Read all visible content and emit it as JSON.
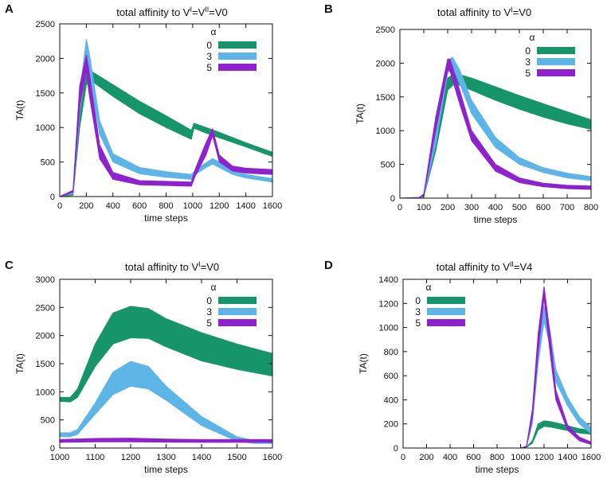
{
  "colors": {
    "alpha0": "#16956b",
    "alpha3": "#5cb5e6",
    "alpha5": "#8e22cf",
    "frame": "#111111"
  },
  "chart_data": [
    {
      "id": "A",
      "type": "area",
      "letter": "A",
      "title": "total affinity to V I=V II=V0",
      "title_parts": [
        "total affinity to V",
        "I",
        "=V",
        "II",
        "=V0"
      ],
      "xlabel": "time steps",
      "ylabel": "TA(t)",
      "xlim": [
        0,
        1600
      ],
      "ylim": [
        0,
        2500
      ],
      "xticks": [
        0,
        200,
        400,
        600,
        800,
        1000,
        1200,
        1400,
        1600
      ],
      "yticks": [
        0,
        500,
        1000,
        1500,
        2000,
        2500
      ],
      "legend": {
        "title": "α",
        "position": "top-right",
        "entries": [
          "0",
          "3",
          "5"
        ]
      },
      "series": [
        {
          "name": "0",
          "color_key": "alpha0",
          "x": [
            0,
            100,
            150,
            200,
            250,
            400,
            600,
            800,
            990,
            1010,
            1100,
            1200,
            1400,
            1600
          ],
          "lower": [
            0,
            20,
            1000,
            1620,
            1660,
            1450,
            1200,
            1000,
            830,
            990,
            920,
            850,
            720,
            580
          ],
          "upper": [
            0,
            30,
            1150,
            1830,
            1800,
            1620,
            1380,
            1170,
            960,
            1060,
            1000,
            930,
            780,
            640
          ]
        },
        {
          "name": "3",
          "color_key": "alpha3",
          "x": [
            0,
            100,
            150,
            200,
            220,
            300,
            400,
            600,
            800,
            990,
            1020,
            1100,
            1150,
            1200,
            1300,
            1400,
            1600
          ],
          "lower": [
            0,
            50,
            1200,
            2060,
            1800,
            900,
            500,
            330,
            280,
            250,
            320,
            420,
            470,
            420,
            320,
            270,
            210
          ],
          "upper": [
            0,
            80,
            1500,
            2280,
            2100,
            1100,
            620,
            420,
            360,
            320,
            380,
            490,
            550,
            500,
            380,
            320,
            260
          ]
        },
        {
          "name": "5",
          "color_key": "alpha5",
          "x": [
            0,
            100,
            150,
            200,
            220,
            300,
            400,
            600,
            800,
            990,
            1020,
            1100,
            1150,
            1200,
            1300,
            1400,
            1600
          ],
          "lower": [
            0,
            60,
            1300,
            1830,
            1500,
            550,
            250,
            170,
            160,
            150,
            300,
            600,
            880,
            500,
            370,
            340,
            320
          ],
          "upper": [
            0,
            90,
            1600,
            2050,
            1820,
            750,
            350,
            230,
            220,
            210,
            400,
            780,
            980,
            600,
            440,
            410,
            390
          ]
        }
      ]
    },
    {
      "id": "B",
      "type": "area",
      "letter": "B",
      "title_parts": [
        "total affinity to V",
        "I",
        "=V0"
      ],
      "xlabel": "time steps",
      "ylabel": "TA(t)",
      "xlim": [
        0,
        800
      ],
      "ylim": [
        0,
        2500
      ],
      "xticks": [
        0,
        100,
        200,
        300,
        400,
        500,
        600,
        700,
        800
      ],
      "yticks": [
        0,
        500,
        1000,
        1500,
        2000,
        2500
      ],
      "legend": {
        "title": "α",
        "position": "top-right",
        "entries": [
          "0",
          "3",
          "5"
        ]
      },
      "series": [
        {
          "name": "0",
          "color_key": "alpha0",
          "x": [
            0,
            80,
            100,
            150,
            200,
            230,
            300,
            400,
            500,
            600,
            700,
            800
          ],
          "lower": [
            0,
            5,
            20,
            700,
            1600,
            1700,
            1600,
            1450,
            1320,
            1200,
            1100,
            1020
          ],
          "upper": [
            0,
            10,
            40,
            950,
            1780,
            1850,
            1780,
            1650,
            1520,
            1400,
            1280,
            1160
          ]
        },
        {
          "name": "3",
          "color_key": "alpha3",
          "x": [
            0,
            80,
            100,
            150,
            200,
            220,
            250,
            300,
            400,
            500,
            600,
            700,
            800
          ],
          "lower": [
            0,
            5,
            30,
            800,
            1850,
            1960,
            1700,
            1250,
            750,
            500,
            380,
            300,
            260
          ],
          "upper": [
            0,
            10,
            50,
            1000,
            2030,
            2090,
            1900,
            1450,
            900,
            600,
            450,
            370,
            320
          ]
        },
        {
          "name": "5",
          "color_key": "alpha5",
          "x": [
            0,
            80,
            100,
            150,
            200,
            210,
            250,
            300,
            400,
            500,
            600,
            700,
            800
          ],
          "lower": [
            0,
            5,
            40,
            1000,
            1900,
            1880,
            1400,
            850,
            400,
            230,
            170,
            140,
            130
          ],
          "upper": [
            0,
            10,
            60,
            1200,
            2060,
            2060,
            1600,
            1000,
            500,
            300,
            220,
            190,
            180
          ]
        }
      ]
    },
    {
      "id": "C",
      "type": "area",
      "letter": "C",
      "title_parts": [
        "total affinity to V",
        "I",
        "=V0"
      ],
      "xlabel": "time steps",
      "ylabel": "TA(t)",
      "xlim": [
        1000,
        1600
      ],
      "ylim": [
        0,
        3000
      ],
      "xticks": [
        1000,
        1100,
        1200,
        1300,
        1400,
        1500,
        1600
      ],
      "yticks": [
        0,
        500,
        1000,
        1500,
        2000,
        2500,
        3000
      ],
      "legend": {
        "title": "α",
        "position": "top-right",
        "entries": [
          "0",
          "3",
          "5"
        ]
      },
      "series": [
        {
          "name": "0",
          "color_key": "alpha0",
          "x": [
            1000,
            1030,
            1050,
            1100,
            1150,
            1200,
            1250,
            1300,
            1400,
            1500,
            1600
          ],
          "lower": [
            830,
            820,
            900,
            1450,
            1850,
            1960,
            1950,
            1800,
            1550,
            1400,
            1280
          ],
          "upper": [
            900,
            900,
            1050,
            1850,
            2400,
            2520,
            2480,
            2300,
            2050,
            1850,
            1680
          ]
        },
        {
          "name": "3",
          "color_key": "alpha3",
          "x": [
            1000,
            1030,
            1050,
            1100,
            1150,
            1200,
            1250,
            1300,
            1400,
            1500,
            1550,
            1600
          ],
          "lower": [
            200,
            200,
            240,
            600,
            950,
            1100,
            1050,
            850,
            400,
            120,
            80,
            80
          ],
          "upper": [
            270,
            270,
            330,
            800,
            1350,
            1540,
            1450,
            1100,
            560,
            200,
            130,
            120
          ]
        },
        {
          "name": "5",
          "color_key": "alpha5",
          "x": [
            1000,
            1100,
            1200,
            1300,
            1400,
            1500,
            1600
          ],
          "lower": [
            100,
            110,
            110,
            105,
            100,
            100,
            100
          ],
          "upper": [
            150,
            170,
            175,
            160,
            150,
            150,
            150
          ]
        }
      ]
    },
    {
      "id": "D",
      "type": "area",
      "letter": "D",
      "title_parts": [
        "total affinity to V",
        "II",
        "=V4"
      ],
      "xlabel": "time steps",
      "ylabel": "TA(t)",
      "xlim": [
        0,
        1600
      ],
      "ylim": [
        0,
        1400
      ],
      "xticks": [
        0,
        200,
        400,
        600,
        800,
        1000,
        1200,
        1400,
        1600
      ],
      "yticks": [
        0,
        200,
        400,
        600,
        800,
        1000,
        1200,
        1400
      ],
      "legend": {
        "title": "α",
        "position": "top-left",
        "entries": [
          "0",
          "3",
          "5"
        ]
      },
      "series": [
        {
          "name": "0",
          "color_key": "alpha0",
          "x": [
            0,
            1000,
            1050,
            1100,
            1150,
            1200,
            1250,
            1300,
            1400,
            1500,
            1600
          ],
          "lower": [
            0,
            0,
            5,
            40,
            150,
            180,
            175,
            165,
            145,
            125,
            115
          ],
          "upper": [
            0,
            0,
            8,
            60,
            200,
            225,
            220,
            210,
            185,
            160,
            145
          ]
        },
        {
          "name": "3",
          "color_key": "alpha3",
          "x": [
            0,
            1000,
            1050,
            1100,
            1150,
            1200,
            1250,
            1300,
            1400,
            1500,
            1600
          ],
          "lower": [
            0,
            0,
            10,
            200,
            700,
            1050,
            850,
            550,
            350,
            200,
            120
          ],
          "upper": [
            0,
            0,
            15,
            280,
            850,
            1180,
            980,
            650,
            420,
            260,
            170
          ]
        },
        {
          "name": "5",
          "color_key": "alpha5",
          "x": [
            0,
            1000,
            1050,
            1100,
            1150,
            1200,
            1250,
            1300,
            1400,
            1500,
            1600
          ],
          "lower": [
            0,
            0,
            10,
            250,
            800,
            1250,
            800,
            400,
            150,
            60,
            30
          ],
          "upper": [
            0,
            0,
            15,
            320,
            950,
            1340,
            950,
            480,
            190,
            90,
            50
          ]
        }
      ]
    }
  ]
}
